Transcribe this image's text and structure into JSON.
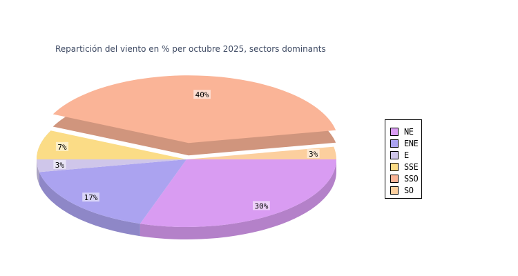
{
  "page": {
    "background": "#FFFFFF"
  },
  "chart_data": {
    "type": "pie",
    "style_3d": true,
    "title": "Repartición del viento en % per octubre 2025, sectors dominants",
    "title_color": "#3E4A63",
    "legend_position": "right",
    "legend_entries": [
      "NE",
      "ENE",
      "E",
      "SSE",
      "SSO",
      "SO"
    ],
    "slices": [
      {
        "label": "NE",
        "value": 30,
        "value_label": "30%",
        "color": "#D99CF2",
        "exploded": false
      },
      {
        "label": "ENE",
        "value": 17,
        "value_label": "17%",
        "color": "#ABA3F0",
        "exploded": false
      },
      {
        "label": "E",
        "value": 3,
        "value_label": "3%",
        "color": "#CFC6EA",
        "exploded": false
      },
      {
        "label": "SSE",
        "value": 7,
        "value_label": "7%",
        "color": "#FBDC86",
        "exploded": false
      },
      {
        "label": "SSO",
        "value": 40,
        "value_label": "40%",
        "color": "#FAB497",
        "exploded": true
      },
      {
        "label": "SO",
        "value": 3,
        "value_label": "3%",
        "color": "#FCCF9E",
        "exploded": false
      }
    ]
  }
}
